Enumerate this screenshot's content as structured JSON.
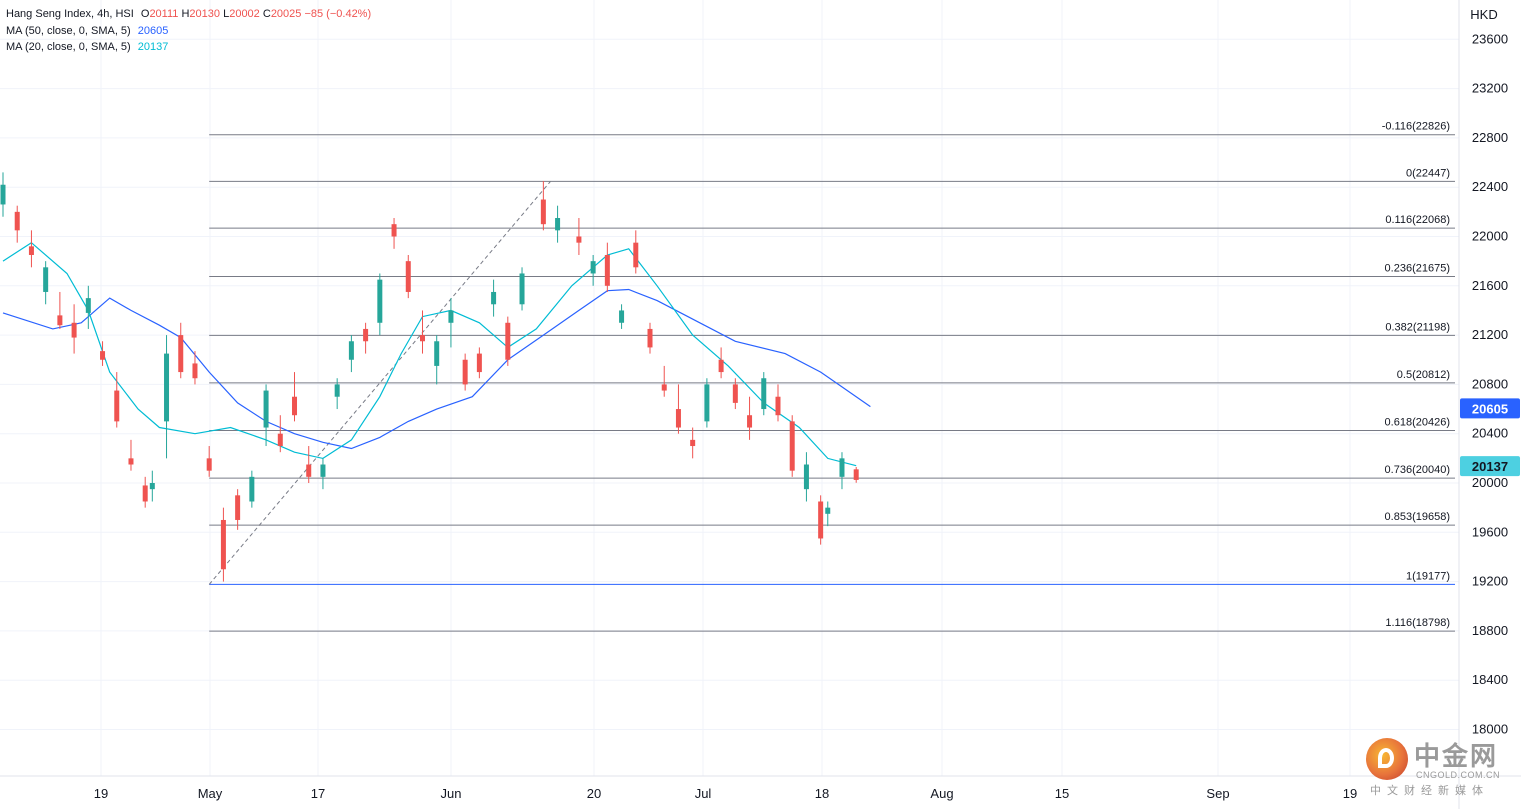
{
  "legend": {
    "symbol": "Hang Seng Index, 4h, HSI",
    "ohlc": {
      "o_label": "O",
      "o": "20111",
      "h_label": "H",
      "h": "20130",
      "l_label": "L",
      "l": "20002",
      "c_label": "C",
      "c": "20025",
      "change": "−85 (−0.42%)"
    },
    "ma50": {
      "label": "MA (50, close, 0, SMA, 5)",
      "value": "20605"
    },
    "ma20": {
      "label": "MA (20, close, 0, SMA, 5)",
      "value": "20137"
    }
  },
  "colors": {
    "up": "#26a69a",
    "down": "#ef5350",
    "ma50": "#2962ff",
    "ma20": "#00bcd4",
    "fib_line": "#787b86",
    "fib_base": "#2962ff"
  },
  "axis": {
    "currency": "HKD"
  },
  "price_tags": [
    {
      "value": "20605",
      "color": "#2962ff"
    },
    {
      "value": "20137",
      "color": "#4dd0e1"
    }
  ],
  "watermark": {
    "name": "中金网",
    "url": "CNGOLD.COM.CN",
    "sub": "中文财经新媒体"
  },
  "chart_data": {
    "type": "candlestick",
    "title": "Hang Seng Index, 4h, HSI",
    "y_axis": {
      "min": 17800,
      "max": 23800,
      "ticks": [
        18000,
        18400,
        18800,
        19200,
        19600,
        20000,
        20400,
        20800,
        21200,
        21600,
        22000,
        22400,
        22800,
        23200,
        23600
      ],
      "position": "right",
      "unit": "HKD"
    },
    "x_axis": {
      "labels": [
        "19",
        "May",
        "17",
        "Jun",
        "20",
        "Jul",
        "18",
        "Aug",
        "15",
        "Sep",
        "19"
      ],
      "range_days": [
        "2024-04-11",
        "2024-09-21"
      ]
    },
    "grid": true,
    "series": [
      {
        "name": "MA (50, close, 0, SMA, 5)",
        "type": "line",
        "color": "#2962ff",
        "points": [
          [
            "2024-04-11",
            21380
          ],
          [
            "2024-04-18",
            21250
          ],
          [
            "2024-04-22",
            21300
          ],
          [
            "2024-04-26",
            21500
          ],
          [
            "2024-04-29",
            21400
          ],
          [
            "2024-05-03",
            21280
          ],
          [
            "2024-05-06",
            21180
          ],
          [
            "2024-05-10",
            20900
          ],
          [
            "2024-05-14",
            20650
          ],
          [
            "2024-05-18",
            20500
          ],
          [
            "2024-05-22",
            20400
          ],
          [
            "2024-05-26",
            20330
          ],
          [
            "2024-05-30",
            20280
          ],
          [
            "2024-06-03",
            20370
          ],
          [
            "2024-06-07",
            20500
          ],
          [
            "2024-06-11",
            20600
          ],
          [
            "2024-06-16",
            20700
          ],
          [
            "2024-06-21",
            21000
          ],
          [
            "2024-06-26",
            21200
          ],
          [
            "2024-07-01",
            21400
          ],
          [
            "2024-07-05",
            21560
          ],
          [
            "2024-07-08",
            21570
          ],
          [
            "2024-07-12",
            21480
          ],
          [
            "2024-07-18",
            21300
          ],
          [
            "2024-07-23",
            21150
          ],
          [
            "2024-07-30",
            21050
          ],
          [
            "2024-08-04",
            20900
          ],
          [
            "2024-08-11",
            20620
          ]
        ]
      },
      {
        "name": "MA (20, close, 0, SMA, 5)",
        "type": "line",
        "color": "#00bcd4",
        "points": [
          [
            "2024-04-11",
            21800
          ],
          [
            "2024-04-15",
            21950
          ],
          [
            "2024-04-20",
            21700
          ],
          [
            "2024-04-23",
            21400
          ],
          [
            "2024-04-26",
            20900
          ],
          [
            "2024-04-30",
            20600
          ],
          [
            "2024-05-03",
            20450
          ],
          [
            "2024-05-08",
            20400
          ],
          [
            "2024-05-13",
            20450
          ],
          [
            "2024-05-18",
            20350
          ],
          [
            "2024-05-22",
            20250
          ],
          [
            "2024-05-26",
            20200
          ],
          [
            "2024-05-30",
            20350
          ],
          [
            "2024-06-03",
            20700
          ],
          [
            "2024-06-06",
            21050
          ],
          [
            "2024-06-09",
            21350
          ],
          [
            "2024-06-13",
            21400
          ],
          [
            "2024-06-17",
            21300
          ],
          [
            "2024-06-21",
            21100
          ],
          [
            "2024-06-25",
            21250
          ],
          [
            "2024-06-30",
            21600
          ],
          [
            "2024-07-05",
            21850
          ],
          [
            "2024-07-08",
            21900
          ],
          [
            "2024-07-12",
            21600
          ],
          [
            "2024-07-17",
            21200
          ],
          [
            "2024-07-22",
            20950
          ],
          [
            "2024-07-27",
            20650
          ],
          [
            "2024-08-01",
            20450
          ],
          [
            "2024-08-05",
            20200
          ],
          [
            "2024-08-09",
            20140
          ]
        ]
      }
    ],
    "candles": [
      [
        "2024-04-11",
        22260,
        22520,
        22160,
        22420
      ],
      [
        "2024-04-13",
        22200,
        22250,
        21950,
        22050
      ],
      [
        "2024-04-15",
        21920,
        22050,
        21750,
        21850
      ],
      [
        "2024-04-17",
        21550,
        21800,
        21450,
        21750
      ],
      [
        "2024-04-19",
        21360,
        21550,
        21250,
        21280
      ],
      [
        "2024-04-21",
        21300,
        21450,
        21050,
        21180
      ],
      [
        "2024-04-23",
        21380,
        21600,
        21250,
        21500
      ],
      [
        "2024-04-25",
        21070,
        21150,
        20950,
        21000
      ],
      [
        "2024-04-27",
        20750,
        20900,
        20450,
        20500
      ],
      [
        "2024-04-29",
        20200,
        20350,
        20100,
        20150
      ],
      [
        "2024-05-01",
        19980,
        20050,
        19800,
        19850
      ],
      [
        "2024-05-02",
        19950,
        20100,
        19850,
        20000
      ],
      [
        "2024-05-04",
        20500,
        21200,
        20200,
        21050
      ],
      [
        "2024-05-06",
        21200,
        21300,
        20850,
        20900
      ],
      [
        "2024-05-08",
        20970,
        21070,
        20800,
        20850
      ],
      [
        "2024-05-10",
        20200,
        20300,
        20050,
        20100
      ],
      [
        "2024-05-12",
        19700,
        19800,
        19200,
        19300
      ],
      [
        "2024-05-14",
        19900,
        19950,
        19620,
        19700
      ],
      [
        "2024-05-16",
        19850,
        20100,
        19800,
        20050
      ],
      [
        "2024-05-18",
        20450,
        20800,
        20300,
        20750
      ],
      [
        "2024-05-20",
        20400,
        20550,
        20250,
        20300
      ],
      [
        "2024-05-22",
        20700,
        20900,
        20500,
        20550
      ],
      [
        "2024-05-24",
        20150,
        20300,
        20000,
        20050
      ],
      [
        "2024-05-26",
        20050,
        20200,
        19950,
        20150
      ],
      [
        "2024-05-28",
        20700,
        20850,
        20600,
        20800
      ],
      [
        "2024-05-30",
        21000,
        21200,
        20900,
        21150
      ],
      [
        "2024-06-01",
        21250,
        21300,
        21050,
        21150
      ],
      [
        "2024-06-03",
        21300,
        21700,
        21200,
        21650
      ],
      [
        "2024-06-05",
        22100,
        22150,
        21900,
        22000
      ],
      [
        "2024-06-07",
        21800,
        21850,
        21500,
        21550
      ],
      [
        "2024-06-09",
        21200,
        21400,
        21050,
        21150
      ],
      [
        "2024-06-11",
        20950,
        21200,
        20800,
        21150
      ],
      [
        "2024-06-13",
        21300,
        21500,
        21100,
        21400
      ],
      [
        "2024-06-15",
        21000,
        21050,
        20750,
        20800
      ],
      [
        "2024-06-17",
        21050,
        21100,
        20850,
        20900
      ],
      [
        "2024-06-19",
        21450,
        21650,
        21350,
        21550
      ],
      [
        "2024-06-21",
        21300,
        21350,
        20950,
        21000
      ],
      [
        "2024-06-23",
        21450,
        21750,
        21400,
        21700
      ],
      [
        "2024-06-26",
        22300,
        22450,
        22050,
        22100
      ],
      [
        "2024-06-28",
        22050,
        22250,
        21950,
        22150
      ],
      [
        "2024-07-01",
        22000,
        22150,
        21850,
        21950
      ],
      [
        "2024-07-03",
        21700,
        21850,
        21600,
        21800
      ],
      [
        "2024-07-05",
        21850,
        21950,
        21550,
        21600
      ],
      [
        "2024-07-07",
        21300,
        21450,
        21250,
        21400
      ],
      [
        "2024-07-09",
        21950,
        22050,
        21700,
        21750
      ],
      [
        "2024-07-11",
        21250,
        21300,
        21050,
        21100
      ],
      [
        "2024-07-13",
        20800,
        20950,
        20700,
        20750
      ],
      [
        "2024-07-15",
        20600,
        20800,
        20400,
        20450
      ],
      [
        "2024-07-17",
        20350,
        20450,
        20200,
        20300
      ],
      [
        "2024-07-19",
        20500,
        20850,
        20450,
        20800
      ],
      [
        "2024-07-21",
        21000,
        21100,
        20850,
        20900
      ],
      [
        "2024-07-23",
        20800,
        20850,
        20600,
        20650
      ],
      [
        "2024-07-25",
        20550,
        20700,
        20350,
        20450
      ],
      [
        "2024-07-27",
        20600,
        20900,
        20550,
        20850
      ],
      [
        "2024-07-29",
        20700,
        20800,
        20500,
        20550
      ],
      [
        "2024-07-31",
        20500,
        20550,
        20050,
        20100
      ],
      [
        "2024-08-02",
        19950,
        20250,
        19850,
        20150
      ],
      [
        "2024-08-04",
        19850,
        19900,
        19500,
        19550
      ],
      [
        "2024-08-05",
        19750,
        19850,
        19650,
        19800
      ],
      [
        "2024-08-07",
        20050,
        20250,
        19950,
        20200
      ],
      [
        "2024-08-09",
        20111,
        20130,
        20002,
        20025
      ]
    ],
    "fibonacci": {
      "anchor_low": {
        "date": "2024-05-10",
        "price": 19177
      },
      "anchor_high": {
        "date": "2024-06-27",
        "price": 22447
      },
      "levels": [
        {
          "label": "-0.116(22826)",
          "price": 22826
        },
        {
          "label": "0(22447)",
          "price": 22447
        },
        {
          "label": "0.116(22068)",
          "price": 22068
        },
        {
          "label": "0.236(21675)",
          "price": 21675
        },
        {
          "label": "0.382(21198)",
          "price": 21198
        },
        {
          "label": "0.5(20812)",
          "price": 20812
        },
        {
          "label": "0.618(20426)",
          "price": 20426
        },
        {
          "label": "0.736(20040)",
          "price": 20040
        },
        {
          "label": "0.853(19658)",
          "price": 19658
        },
        {
          "label": "1(19177)",
          "price": 19177
        },
        {
          "label": "1.116(18798)",
          "price": 18798
        }
      ]
    }
  }
}
